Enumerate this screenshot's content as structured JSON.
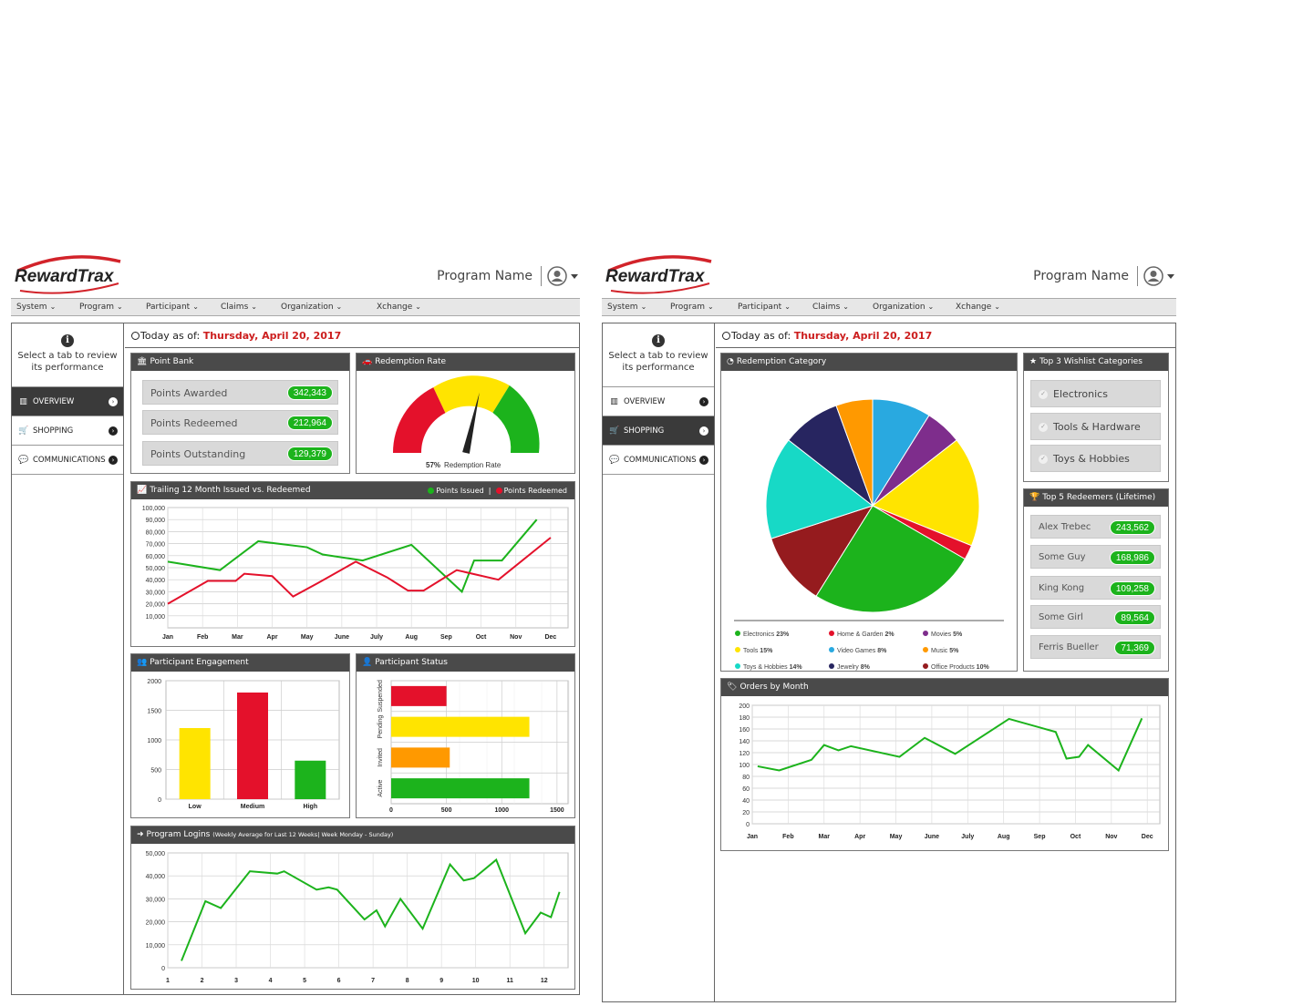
{
  "header": {
    "brand": "RewardTrax",
    "program_name": "Program Name",
    "nav": [
      "System",
      "Program",
      "Participant",
      "Claims",
      "Organization",
      "Xchange"
    ]
  },
  "sidebar": {
    "info_text": "Select a tab to review its performance",
    "tabs": [
      {
        "label": "OVERVIEW",
        "icon": "bar-chart-icon"
      },
      {
        "label": "SHOPPING",
        "icon": "cart-icon"
      },
      {
        "label": "COMMUNICATIONS",
        "icon": "chat-icon"
      }
    ]
  },
  "today": {
    "label": "Today as of:",
    "date": "Thursday, April 20, 2017"
  },
  "overview": {
    "point_bank": {
      "title": "Point Bank",
      "rows": [
        {
          "label": "Points Awarded",
          "value": "342,343"
        },
        {
          "label": "Points Redeemed",
          "value": "212,964"
        },
        {
          "label": "Points Outstanding",
          "value": "129,379"
        }
      ]
    },
    "redemption_rate": {
      "title": "Redemption Rate",
      "value_label": "57%",
      "caption": "Redemption Rate"
    },
    "trailing": {
      "title": "Trailing 12 Month Issued vs. Redeemed",
      "legend_issued": "Points Issued",
      "legend_redeemed": "Points Redeemed"
    },
    "engagement": {
      "title": "Participant Engagement"
    },
    "status": {
      "title": "Participant Status"
    },
    "logins": {
      "title": "Program Logins",
      "subtitle": "(Weekly Average for Last 12 Weeks| Week Monday - Sunday)"
    }
  },
  "shopping": {
    "category": {
      "title": "Redemption Category"
    },
    "wishlist": {
      "title": "Top 3 Wishlist Categories",
      "items": [
        "Electronics",
        "Tools & Hardware",
        "Toys & Hobbies"
      ]
    },
    "redeemers": {
      "title": "Top 5 Redeemers (Lifetime)",
      "rows": [
        {
          "name": "Alex Trebec",
          "value": "243,562"
        },
        {
          "name": "Some Guy",
          "value": "168,986"
        },
        {
          "name": "King Kong",
          "value": "109,258"
        },
        {
          "name": "Some Girl",
          "value": "89,564"
        },
        {
          "name": "Ferris Bueller",
          "value": "71,369"
        }
      ]
    },
    "orders": {
      "title": "Orders by Month"
    }
  },
  "colors": {
    "green": "#1cb31c",
    "red": "#e4112b",
    "yellow": "#ffe400",
    "orange": "#ff9900",
    "dark": "#4a4a4a",
    "date_red": "#cc1e1e"
  },
  "chart_data": [
    {
      "id": "redemption_rate",
      "type": "gauge",
      "title": "Redemption Rate",
      "value": 57,
      "bands": [
        {
          "color": "#e4112b"
        },
        {
          "color": "#ffe400"
        },
        {
          "color": "#1cb31c"
        }
      ]
    },
    {
      "id": "trailing",
      "type": "line",
      "title": "Trailing 12 Month Issued vs. Redeemed",
      "categories": [
        "Jan",
        "Feb",
        "Mar",
        "Apr",
        "May",
        "June",
        "July",
        "Aug",
        "Sep",
        "Oct",
        "Nov",
        "Dec"
      ],
      "ylim": [
        0,
        100000
      ],
      "yticks": [
        "100,000",
        "90,000",
        "80,000",
        "70,000",
        "60,000",
        "50,000",
        "40,000",
        "30,000",
        "20,000",
        "10,000"
      ],
      "series": [
        {
          "name": "Points Issued",
          "color": "#1cb31c",
          "points": [
            [
              0,
              55000
            ],
            [
              1.5,
              48000
            ],
            [
              2.6,
              72000
            ],
            [
              4,
              67000
            ],
            [
              4.45,
              61000
            ],
            [
              5.6,
              56000
            ],
            [
              7,
              69000
            ],
            [
              8.45,
              30000
            ],
            [
              8.8,
              56000
            ],
            [
              9.6,
              56000
            ],
            [
              10.6,
              90000
            ]
          ]
        },
        {
          "name": "Points Redeemed",
          "color": "#e4112b",
          "points": [
            [
              0,
              20000
            ],
            [
              1.15,
              39000
            ],
            [
              1.95,
              39000
            ],
            [
              2.2,
              45000
            ],
            [
              3,
              43000
            ],
            [
              3.6,
              26000
            ],
            [
              4.3,
              37000
            ],
            [
              5.4,
              55000
            ],
            [
              6.3,
              42000
            ],
            [
              6.9,
              31000
            ],
            [
              7.35,
              31000
            ],
            [
              8.3,
              48000
            ],
            [
              9.5,
              40000
            ],
            [
              11,
              75000
            ]
          ]
        }
      ]
    },
    {
      "id": "engagement",
      "type": "bar",
      "title": "Participant Engagement",
      "categories": [
        "Low",
        "Medium",
        "High"
      ],
      "values": [
        1200,
        1800,
        650
      ],
      "colors": [
        "#ffe400",
        "#e4112b",
        "#1cb31c"
      ],
      "ylim": [
        0,
        2000
      ],
      "yticks": [
        0,
        500,
        1000,
        1500,
        2000
      ]
    },
    {
      "id": "status",
      "type": "bar",
      "orientation": "horizontal",
      "title": "Participant Status",
      "categories": [
        "Suspended",
        "Pending",
        "Invited",
        "Active"
      ],
      "values": [
        500,
        1250,
        530,
        1250
      ],
      "colors": [
        "#e4112b",
        "#ffe400",
        "#ff9900",
        "#1cb31c"
      ],
      "xlim": [
        0,
        1600
      ],
      "xticks": [
        0,
        500,
        1000,
        1500
      ]
    },
    {
      "id": "logins",
      "type": "line",
      "title": "Program Logins",
      "categories": [
        "1",
        "2",
        "3",
        "4",
        "5",
        "6",
        "7",
        "8",
        "9",
        "10",
        "11",
        "12"
      ],
      "ylim": [
        0,
        50000
      ],
      "yticks": [
        "50,000",
        "40,000",
        "30,000",
        "20,000",
        "10,000",
        "0"
      ],
      "series": [
        {
          "name": "Logins",
          "color": "#1cb31c",
          "points": [
            [
              1,
              3000
            ],
            [
              1.7,
              29000
            ],
            [
              2.15,
              26000
            ],
            [
              3,
              42000
            ],
            [
              3.8,
              41000
            ],
            [
              4.0,
              42000
            ],
            [
              4.95,
              34000
            ],
            [
              5.3,
              35000
            ],
            [
              5.55,
              34000
            ],
            [
              6.35,
              21000
            ],
            [
              6.7,
              25000
            ],
            [
              6.95,
              18000
            ],
            [
              7.4,
              30000
            ],
            [
              8.05,
              17000
            ],
            [
              8.85,
              45000
            ],
            [
              9.25,
              38000
            ],
            [
              9.55,
              39000
            ],
            [
              10.2,
              47000
            ],
            [
              11.05,
              15000
            ],
            [
              11.5,
              24000
            ],
            [
              11.8,
              22000
            ],
            [
              12.05,
              33000
            ]
          ]
        }
      ]
    },
    {
      "id": "category",
      "type": "pie",
      "title": "Redemption Category",
      "series": [
        {
          "name": "Electronics",
          "value": 23,
          "label": "23%",
          "color": "#1cb31c"
        },
        {
          "name": "Home & Garden",
          "value": 2,
          "label": "2%",
          "color": "#e4112b"
        },
        {
          "name": "Movies",
          "value": 5,
          "label": "5%",
          "color": "#7e2d8c"
        },
        {
          "name": "Tools",
          "value": 15,
          "label": "15%",
          "color": "#ffe400"
        },
        {
          "name": "Video Games",
          "value": 8,
          "label": "8%",
          "color": "#29a9e0"
        },
        {
          "name": "Music",
          "value": 5,
          "label": "5%",
          "color": "#ff9900"
        },
        {
          "name": "Toys & Hobbies",
          "value": 14,
          "label": "14%",
          "color": "#17d9c6"
        },
        {
          "name": "Jewelry",
          "value": 8,
          "label": "8%",
          "color": "#272560"
        },
        {
          "name": "Office Products",
          "value": 10,
          "label": "10%",
          "color": "#951b1e"
        }
      ],
      "drawn_order": [
        "Video Games",
        "Movies",
        "Tools",
        "Home & Garden",
        "Electronics",
        "Office Products",
        "Toys & Hobbies",
        "Jewelry",
        "Music"
      ]
    },
    {
      "id": "orders",
      "type": "line",
      "title": "Orders by Month",
      "categories": [
        "Jan",
        "Feb",
        "Mar",
        "Apr",
        "May",
        "June",
        "July",
        "Aug",
        "Sep",
        "Oct",
        "Nov",
        "Dec"
      ],
      "ylim": [
        0,
        200
      ],
      "yticks": [
        200,
        180,
        160,
        140,
        120,
        100,
        80,
        60,
        40,
        20,
        0
      ],
      "series": [
        {
          "name": "Orders",
          "color": "#1cb31c",
          "points": [
            [
              0,
              97
            ],
            [
              0.6,
              90
            ],
            [
              1.5,
              108
            ],
            [
              1.85,
              133
            ],
            [
              2.25,
              124
            ],
            [
              2.6,
              131
            ],
            [
              3.95,
              113
            ],
            [
              4.65,
              145
            ],
            [
              5.5,
              118
            ],
            [
              7,
              177
            ],
            [
              8.3,
              155
            ],
            [
              8.6,
              110
            ],
            [
              8.95,
              113
            ],
            [
              9.2,
              133
            ],
            [
              10.05,
              90
            ],
            [
              10.7,
              178
            ]
          ]
        }
      ]
    }
  ]
}
